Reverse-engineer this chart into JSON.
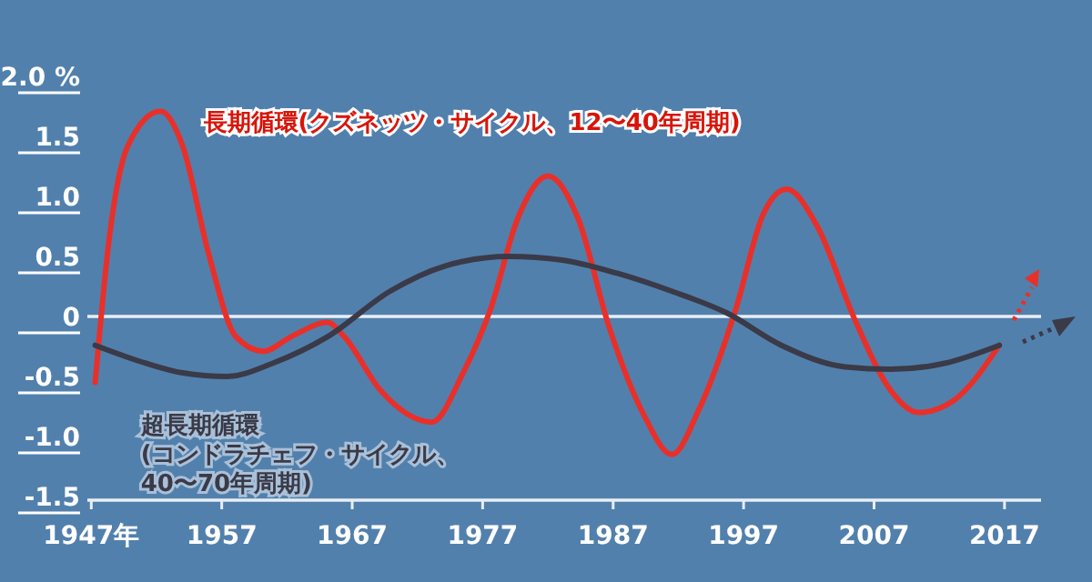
{
  "chart_data": {
    "type": "line",
    "x": [
      1947.3,
      1948.4,
      1949.8,
      1952.3,
      1954,
      1956,
      1958.1,
      1960.2,
      1962.3,
      1965.1,
      1966.4,
      1969.2,
      1973.1,
      1975.5,
      1977.6,
      1979.7,
      1982,
      1984.3,
      1986.7,
      1989.4,
      1991.5,
      1993.6,
      1996.4,
      1998.5,
      2000.3,
      2002.7,
      2005.5,
      2008.3,
      2010.4,
      2013.1,
      2016.6
    ],
    "series": [
      {
        "name": "長期循環(クズネッツ・サイクル、12〜40年周期)",
        "color": "#e8302a",
        "values": [
          -0.55,
          0.67,
          1.42,
          1.71,
          1.42,
          0.52,
          -0.17,
          -0.29,
          -0.17,
          -0.05,
          -0.17,
          -0.62,
          -0.88,
          -0.47,
          0.06,
          0.82,
          1.17,
          0.82,
          -0.09,
          -0.83,
          -1.15,
          -0.77,
          0.06,
          0.85,
          1.06,
          0.74,
          -0.02,
          -0.62,
          -0.8,
          -0.7,
          -0.24
        ]
      },
      {
        "name": "超長期循環\n(コンドラチェフ・サイクル、\n40〜70年周期)",
        "color": "#3a3a48",
        "x": [
          1947.3,
          1951.2,
          1954,
          1957.4,
          1960.9,
          1965.1,
          1969.9,
          1974.1,
          1979,
          1983.1,
          1987.3,
          1991.5,
          1995.7,
          1999.9,
          2004.8,
          2008.3,
          2012.4,
          2016.6
        ],
        "values": [
          -0.24,
          -0.39,
          -0.47,
          -0.5,
          -0.39,
          -0.17,
          0.21,
          0.42,
          0.5,
          0.47,
          0.36,
          0.21,
          0.03,
          -0.24,
          -0.42,
          -0.44,
          -0.39,
          -0.24
        ]
      }
    ],
    "xlim": [
      1946.7,
      2019.8
    ],
    "xticks": [
      {
        "value": 1947,
        "label": "1947年"
      },
      1957,
      1967,
      1977,
      1987,
      1997,
      2007,
      2017
    ],
    "ylim": [
      -1.5,
      2.0
    ],
    "yticks": [
      {
        "value": 2,
        "label": "2.0 %"
      },
      1.5,
      {
        "value": 1,
        "label": "1.0"
      },
      0.5,
      0,
      -0.5,
      {
        "value": -1,
        "label": "-1.0"
      },
      -1.5
    ],
    "ref_lines": [
      {
        "axis": "y",
        "value": 0,
        "color": "#e8eef5"
      }
    ],
    "grid": false,
    "marker": "none",
    "line_style": "solid"
  }
}
